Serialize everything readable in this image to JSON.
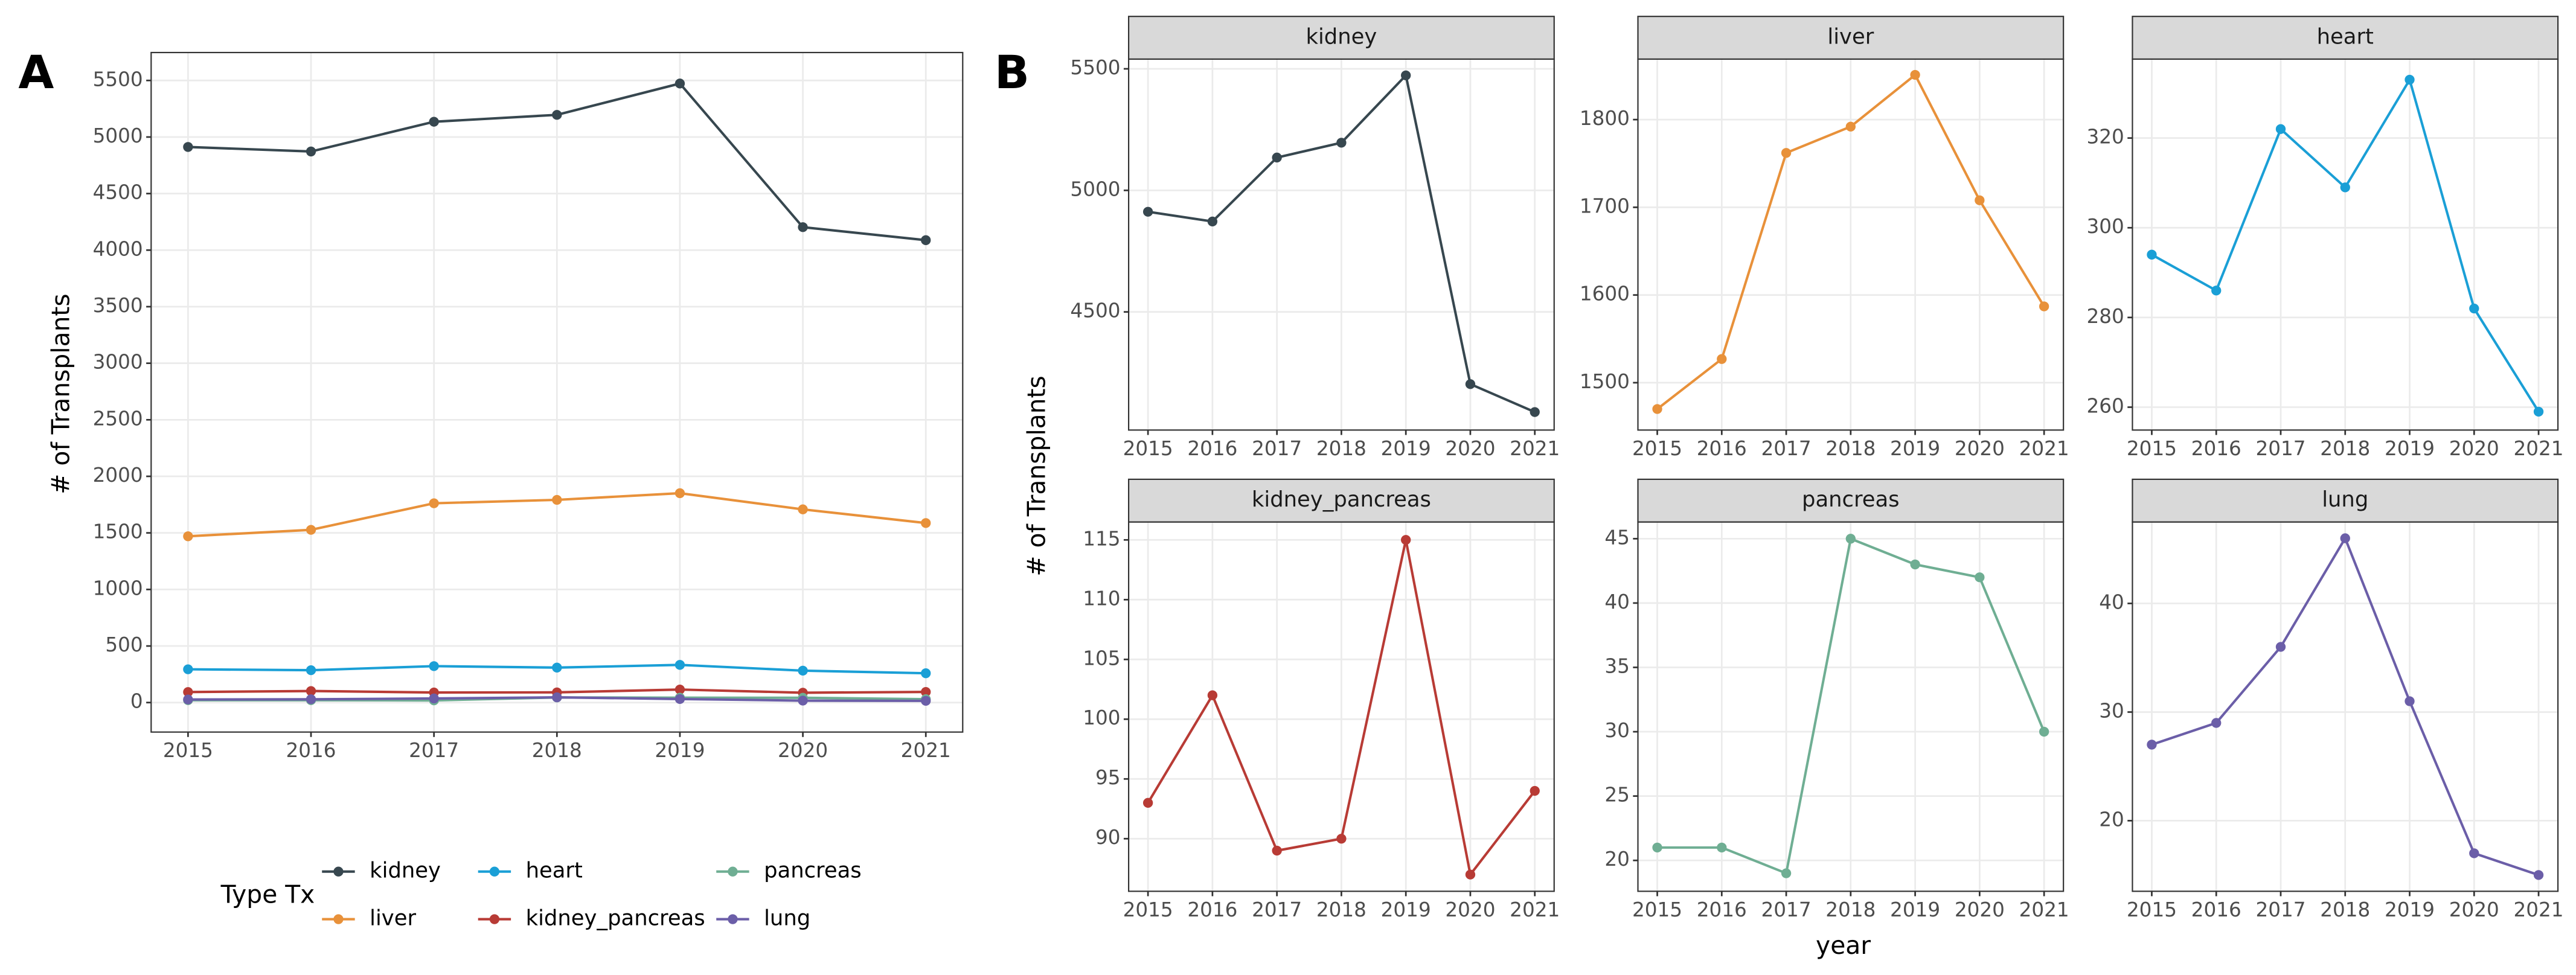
{
  "chart_data": [
    {
      "type": "line",
      "label": "A",
      "ylabel": "# of Transplants",
      "x": [
        2015,
        2016,
        2017,
        2018,
        2019,
        2020,
        2021
      ],
      "xlim": [
        2014.7,
        2021.3
      ],
      "xticks": [
        2015,
        2016,
        2017,
        2018,
        2019,
        2020,
        2021
      ],
      "ylim": [
        -261,
        5747
      ],
      "yticks": [
        0,
        500,
        1000,
        1500,
        2000,
        2500,
        3000,
        3500,
        4000,
        4500,
        5000,
        5500
      ],
      "grid": true,
      "legend_title": "Type Tx",
      "legend_position": "bottom",
      "series": [
        {
          "name": "kidney",
          "color": "#37474f",
          "values": [
            4912,
            4872,
            5135,
            5196,
            5473,
            4203,
            4088
          ]
        },
        {
          "name": "liver",
          "color": "#e8913a",
          "values": [
            1470,
            1527,
            1762,
            1792,
            1851,
            1708,
            1587
          ]
        },
        {
          "name": "heart",
          "color": "#1a9fd6",
          "values": [
            294,
            286,
            322,
            309,
            333,
            282,
            259
          ]
        },
        {
          "name": "kidney_pancreas",
          "color": "#b83b35",
          "values": [
            93,
            102,
            89,
            90,
            115,
            87,
            94
          ]
        },
        {
          "name": "pancreas",
          "color": "#6fae93",
          "values": [
            21,
            21,
            19,
            45,
            43,
            42,
            30
          ]
        },
        {
          "name": "lung",
          "color": "#6b5ea8",
          "values": [
            27,
            29,
            36,
            46,
            31,
            17,
            15
          ]
        }
      ]
    },
    {
      "type": "facet",
      "label": "B",
      "ylabel": "# of Transplants",
      "xlabel": "year",
      "panels": [
        {
          "type": "line",
          "title": "kidney",
          "color": "#37474f",
          "x": [
            2015,
            2016,
            2017,
            2018,
            2019,
            2020,
            2021
          ],
          "values": [
            4912,
            4872,
            5135,
            5196,
            5473,
            4203,
            4088
          ],
          "xlim": [
            2014.7,
            2021.3
          ],
          "xticks": [
            2015,
            2016,
            2017,
            2018,
            2019,
            2020,
            2021
          ],
          "ylim": [
            4014,
            5540
          ],
          "yticks": [
            4500,
            5000,
            5500
          ],
          "grid": true
        },
        {
          "type": "line",
          "title": "liver",
          "color": "#e8913a",
          "x": [
            2015,
            2016,
            2017,
            2018,
            2019,
            2020,
            2021
          ],
          "values": [
            1470,
            1527,
            1762,
            1792,
            1851,
            1708,
            1587
          ],
          "xlim": [
            2014.7,
            2021.3
          ],
          "xticks": [
            2015,
            2016,
            2017,
            2018,
            2019,
            2020,
            2021
          ],
          "ylim": [
            1446,
            1869
          ],
          "yticks": [
            1500,
            1600,
            1700,
            1800
          ],
          "grid": true
        },
        {
          "type": "line",
          "title": "heart",
          "color": "#1a9fd6",
          "x": [
            2015,
            2016,
            2017,
            2018,
            2019,
            2020,
            2021
          ],
          "values": [
            294,
            286,
            322,
            309,
            333,
            282,
            259
          ],
          "xlim": [
            2014.7,
            2021.3
          ],
          "xticks": [
            2015,
            2016,
            2017,
            2018,
            2019,
            2020,
            2021
          ],
          "ylim": [
            254.9,
            337.6
          ],
          "yticks": [
            260,
            280,
            300,
            320
          ],
          "grid": true
        },
        {
          "type": "line",
          "title": "kidney_pancreas",
          "color": "#b83b35",
          "x": [
            2015,
            2016,
            2017,
            2018,
            2019,
            2020,
            2021
          ],
          "values": [
            93,
            102,
            89,
            90,
            115,
            87,
            94
          ],
          "xlim": [
            2014.7,
            2021.3
          ],
          "xticks": [
            2015,
            2016,
            2017,
            2018,
            2019,
            2020,
            2021
          ],
          "ylim": [
            85.6,
            116.5
          ],
          "yticks": [
            90,
            95,
            100,
            105,
            110,
            115
          ],
          "grid": true
        },
        {
          "type": "line",
          "title": "pancreas",
          "color": "#6fae93",
          "x": [
            2015,
            2016,
            2017,
            2018,
            2019,
            2020,
            2021
          ],
          "values": [
            21,
            21,
            19,
            45,
            43,
            42,
            30
          ],
          "xlim": [
            2014.7,
            2021.3
          ],
          "xticks": [
            2015,
            2016,
            2017,
            2018,
            2019,
            2020,
            2021
          ],
          "ylim": [
            17.6,
            46.3
          ],
          "yticks": [
            20,
            25,
            30,
            35,
            40,
            45
          ],
          "grid": true
        },
        {
          "type": "line",
          "title": "lung",
          "color": "#6b5ea8",
          "x": [
            2015,
            2016,
            2017,
            2018,
            2019,
            2020,
            2021
          ],
          "values": [
            27,
            29,
            36,
            46,
            31,
            17,
            15
          ],
          "xlim": [
            2014.7,
            2021.3
          ],
          "xticks": [
            2015,
            2016,
            2017,
            2018,
            2019,
            2020,
            2021
          ],
          "ylim": [
            13.5,
            47.5
          ],
          "yticks": [
            20,
            30,
            40
          ],
          "grid": true
        }
      ]
    }
  ]
}
